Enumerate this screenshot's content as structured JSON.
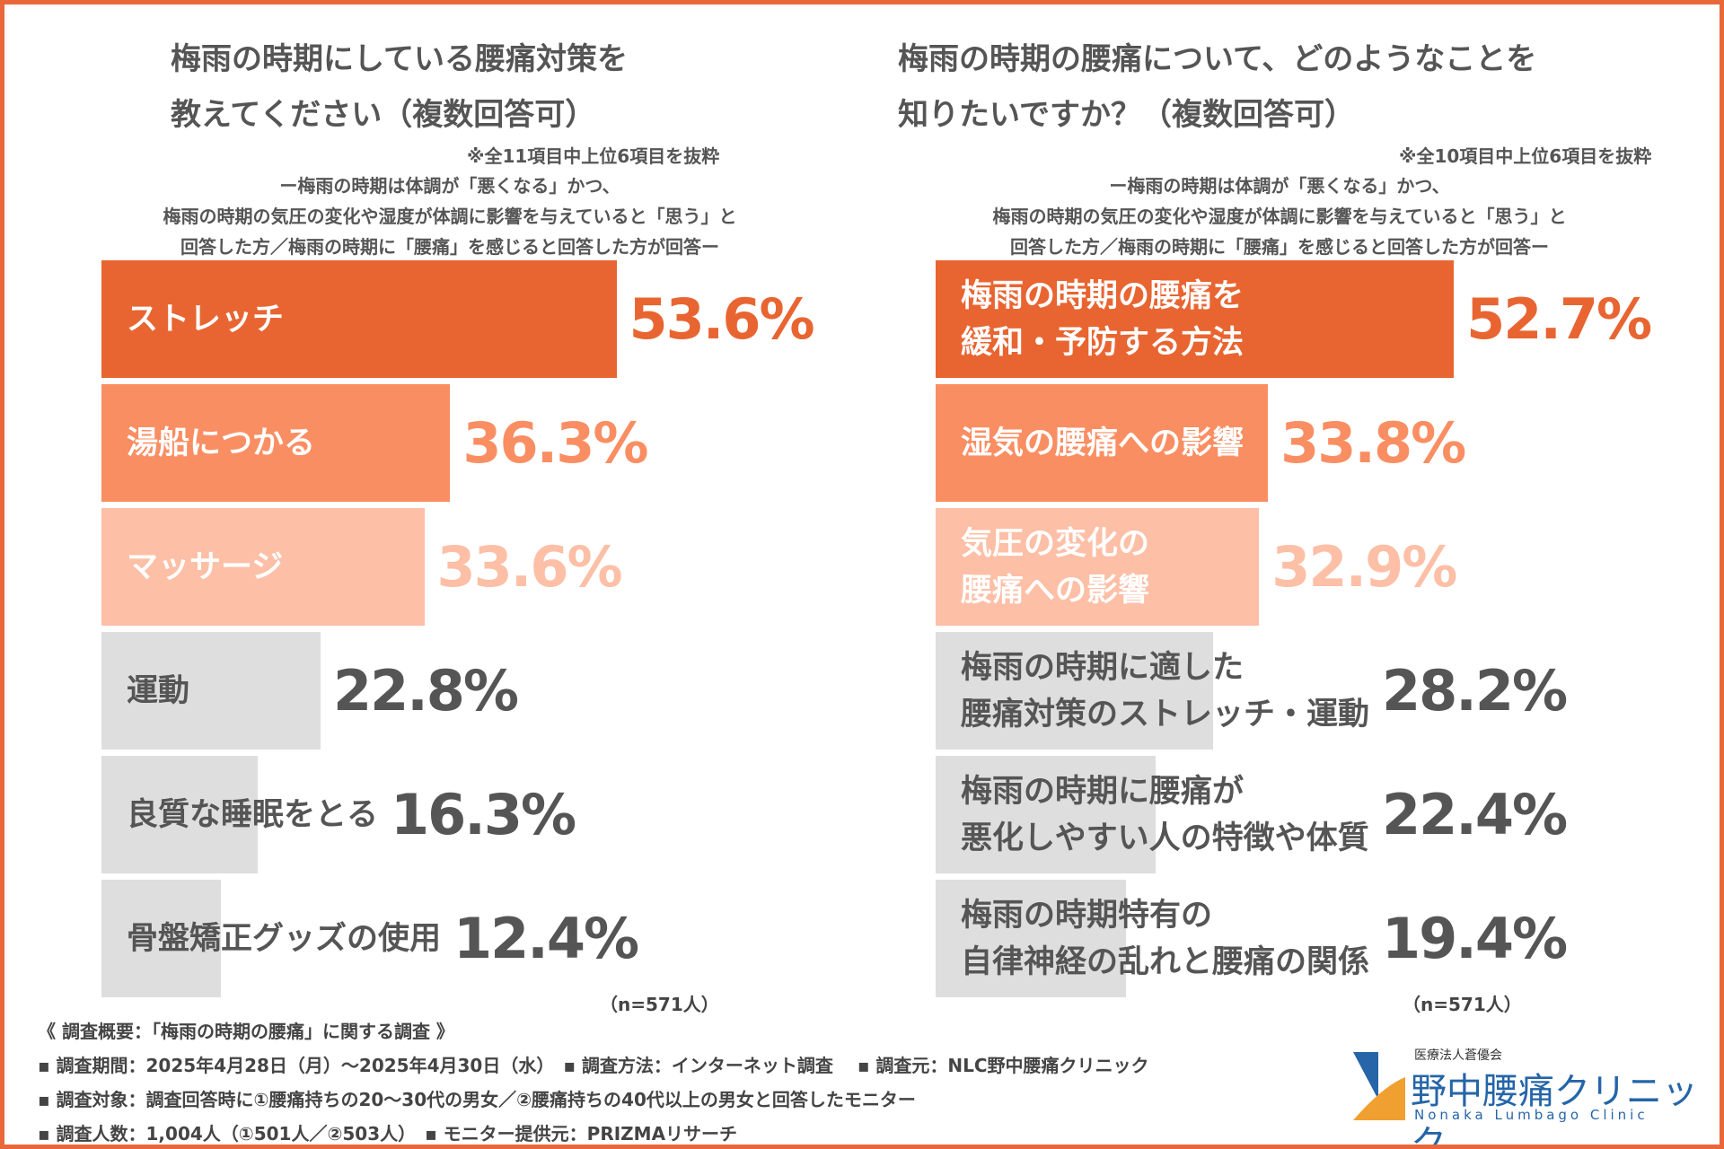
{
  "chart_data": [
    {
      "type": "hbar",
      "title": "梅雨の時期にしている腰痛対策を\n教えてください（複数回答可）",
      "note": "※全11項目中上位6項目を抜粋",
      "subtitle": [
        "ー梅雨の時期は体調が「悪くなる」かつ、",
        "梅雨の時期の気圧の変化や湿度が体調に影響を与えていると「思う」と",
        "回答した方／梅雨の時期に「腰痛」を感じると回答した方が回答ー"
      ],
      "categories": [
        "ストレッチ",
        "湯船につかる",
        "マッサージ",
        "運動",
        "良質な睡眠をとる",
        "骨盤矯正グッズの使用"
      ],
      "values": [
        53.6,
        36.3,
        33.6,
        22.8,
        16.3,
        12.4
      ],
      "value_labels": [
        "53.6%",
        "36.3%",
        "33.6%",
        "22.8%",
        "16.3%",
        "12.4%"
      ],
      "colors": [
        "#e86532",
        "#fa8e63",
        "#fdbfa6",
        "#dedede",
        "#dedede",
        "#dedede"
      ],
      "label_colors": [
        "#ffffff",
        "#ffffff",
        "#ffffff",
        "#555555",
        "#555555",
        "#555555"
      ],
      "value_colors": [
        "#e86532",
        "#fa8e63",
        "#fdbfa6",
        "#555555",
        "#555555",
        "#555555"
      ],
      "n_label": "（n=571人）"
    },
    {
      "type": "hbar",
      "title": "梅雨の時期の腰痛について、どのようなことを\n知りたいですか？（複数回答可）",
      "note": "※全10項目中上位6項目を抜粋",
      "subtitle": [
        "ー梅雨の時期は体調が「悪くなる」かつ、",
        "梅雨の時期の気圧の変化や湿度が体調に影響を与えていると「思う」と",
        "回答した方／梅雨の時期に「腰痛」を感じると回答した方が回答ー"
      ],
      "categories": [
        "梅雨の時期の腰痛を\n緩和・予防する方法",
        "湿気の腰痛への影響",
        "気圧の変化の\n腰痛への影響",
        "梅雨の時期に適した\n腰痛対策のストレッチ・運動",
        "梅雨の時期に腰痛が\n悪化しやすい人の特徴や体質",
        "梅雨の時期特有の\n自律神経の乱れと腰痛の関係"
      ],
      "values": [
        52.7,
        33.8,
        32.9,
        28.2,
        22.4,
        19.4
      ],
      "value_labels": [
        "52.7%",
        "33.8%",
        "32.9%",
        "28.2%",
        "22.4%",
        "19.4%"
      ],
      "colors": [
        "#e86532",
        "#fa8e63",
        "#fdbfa6",
        "#dedede",
        "#dedede",
        "#dedede"
      ],
      "label_colors": [
        "#ffffff",
        "#ffffff",
        "#ffffff",
        "#555555",
        "#555555",
        "#555555"
      ],
      "value_colors": [
        "#e86532",
        "#fa8e63",
        "#fdbfa6",
        "#555555",
        "#555555",
        "#555555"
      ],
      "n_label": "（n=571人）"
    }
  ],
  "footer": [
    "《 調査概要：「梅雨の時期の腰痛」に関する調査 》",
    "▪ 調査期間：2025年4月28日（月）～2025年4月30日（水）　▪ 調査方法：インターネット調査　 ▪ 調査元：NLC野中腰痛クリニック",
    "▪ 調査対象：調査回答時に①腰痛持ちの20～30代の男女／②腰痛持ちの40代以上の男女と回答したモニター",
    "▪ 調査人数：1,004人（①501人／②503人）　▪ モニター提供元：PRIZMAリサーチ"
  ],
  "logo": {
    "org": "医療法人蒼優会",
    "name": "野中腰痛クリニック",
    "en": "Nonaka Lumbago Clinic"
  }
}
